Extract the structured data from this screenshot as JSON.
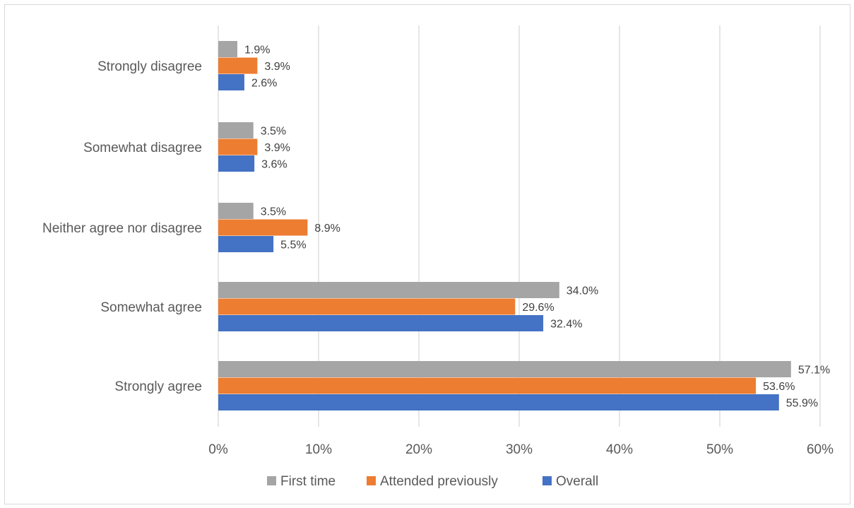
{
  "chart_data": {
    "type": "bar",
    "orientation": "horizontal",
    "categories": [
      "Strongly disagree",
      "Somewhat disagree",
      "Neither agree nor disagree",
      "Somewhat agree",
      "Strongly agree"
    ],
    "series": [
      {
        "name": "First time",
        "color": "#a5a5a5",
        "values": [
          1.9,
          3.5,
          3.5,
          34.0,
          57.1
        ],
        "labels": [
          "1.9%",
          "3.5%",
          "3.5%",
          "34.0%",
          "57.1%"
        ]
      },
      {
        "name": "Attended previously",
        "color": "#ed7d31",
        "values": [
          3.9,
          3.9,
          8.9,
          29.6,
          53.6
        ],
        "labels": [
          "3.9%",
          "3.9%",
          "8.9%",
          "29.6%",
          "53.6%"
        ]
      },
      {
        "name": "Overall",
        "color": "#4472c4",
        "values": [
          2.6,
          3.6,
          5.5,
          32.4,
          55.9
        ],
        "labels": [
          "2.6%",
          "3.6%",
          "5.5%",
          "32.4%",
          "55.9%"
        ]
      }
    ],
    "xlim": [
      0,
      60
    ],
    "ticks": [
      0,
      10,
      20,
      30,
      40,
      50,
      60
    ],
    "tick_labels": [
      "0%",
      "10%",
      "20%",
      "30%",
      "40%",
      "50%",
      "60%"
    ],
    "grid": true,
    "legend_position": "bottom"
  }
}
